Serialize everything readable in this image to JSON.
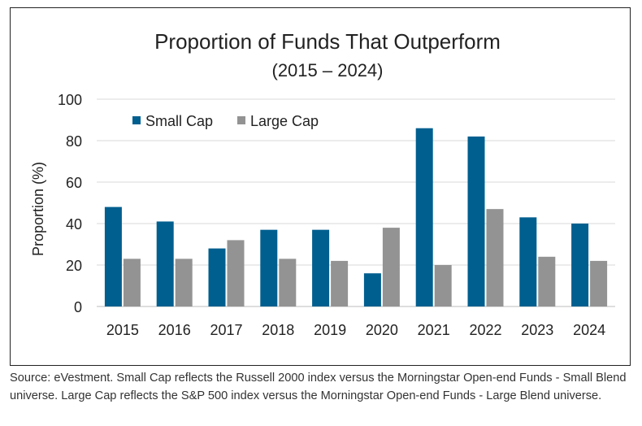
{
  "chart_data": {
    "type": "bar",
    "title": "Proportion of Funds That Outperform",
    "subtitle": "(2015 – 2024)",
    "xlabel": "",
    "ylabel": "Proportion (%)",
    "ylim": [
      0,
      100
    ],
    "yticks": [
      0,
      20,
      40,
      60,
      80,
      100
    ],
    "grid": true,
    "legend_placement": "top-left",
    "categories": [
      "2015",
      "2016",
      "2017",
      "2018",
      "2019",
      "2020",
      "2021",
      "2022",
      "2023",
      "2024"
    ],
    "series": [
      {
        "name": "Small Cap",
        "color": "#005f8f",
        "values": [
          48,
          41,
          28,
          37,
          37,
          16,
          86,
          82,
          43,
          40
        ]
      },
      {
        "name": "Large Cap",
        "color": "#939393",
        "values": [
          23,
          23,
          32,
          23,
          22,
          38,
          20,
          47,
          24,
          22
        ]
      }
    ]
  },
  "source_note": "Source: eVestment. Small Cap reflects the Russell 2000 index versus the Morningstar Open-end Funds - Small Blend universe. Large Cap reflects the S&P 500 index versus the Morningstar Open-end Funds - Large Blend universe."
}
